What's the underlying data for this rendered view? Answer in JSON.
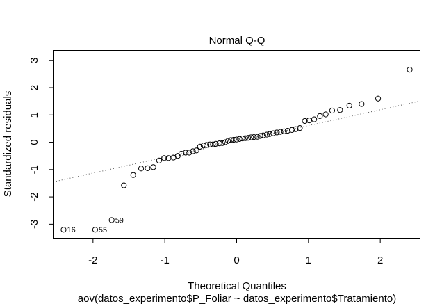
{
  "chart_data": {
    "type": "scatter",
    "title": "Normal Q-Q",
    "xlabel": "Theoretical Quantiles",
    "subtitle": "aov(datos_experimento$P_Foliar ~ datos_experimento$Tratamiento)",
    "ylabel": "Standardized residuals",
    "xlim": [
      -2.55,
      2.55
    ],
    "ylim": [
      -3.5,
      3.35
    ],
    "x_ticks": [
      -2,
      -1,
      0,
      1,
      2
    ],
    "x_tick_labels": [
      "-2",
      "-1",
      "0",
      "1",
      "2"
    ],
    "y_ticks": [
      -3,
      -2,
      -1,
      0,
      1,
      2,
      3
    ],
    "y_tick_labels": [
      "-3",
      "-2",
      "-1",
      "0",
      "1",
      "2",
      "3"
    ],
    "grid": false,
    "reference_line": {
      "style": "dotted",
      "intercept": 0.03,
      "slope": 0.58
    },
    "series": [
      {
        "points": [
          [
            -2.41,
            -3.2
          ],
          [
            -1.97,
            -3.2
          ],
          [
            -1.74,
            -2.85
          ],
          [
            -1.57,
            -1.58
          ],
          [
            -1.44,
            -1.2
          ],
          [
            -1.33,
            -0.96
          ],
          [
            -1.24,
            -0.95
          ],
          [
            -1.16,
            -0.91
          ],
          [
            -1.08,
            -0.67
          ],
          [
            -1.01,
            -0.58
          ],
          [
            -0.95,
            -0.58
          ],
          [
            -0.88,
            -0.56
          ],
          [
            -0.82,
            -0.5
          ],
          [
            -0.77,
            -0.42
          ],
          [
            -0.71,
            -0.38
          ],
          [
            -0.66,
            -0.38
          ],
          [
            -0.61,
            -0.33
          ],
          [
            -0.56,
            -0.3
          ],
          [
            -0.51,
            -0.16
          ],
          [
            -0.46,
            -0.12
          ],
          [
            -0.42,
            -0.1
          ],
          [
            -0.37,
            -0.08
          ],
          [
            -0.33,
            -0.08
          ],
          [
            -0.29,
            -0.06
          ],
          [
            -0.24,
            -0.04
          ],
          [
            -0.2,
            -0.03
          ],
          [
            -0.16,
            0.0
          ],
          [
            -0.12,
            0.05
          ],
          [
            -0.08,
            0.08
          ],
          [
            -0.04,
            0.09
          ],
          [
            0.0,
            0.1
          ],
          [
            0.04,
            0.12
          ],
          [
            0.08,
            0.14
          ],
          [
            0.12,
            0.15
          ],
          [
            0.16,
            0.16
          ],
          [
            0.2,
            0.18
          ],
          [
            0.24,
            0.19
          ],
          [
            0.29,
            0.2
          ],
          [
            0.33,
            0.23
          ],
          [
            0.37,
            0.25
          ],
          [
            0.42,
            0.28
          ],
          [
            0.46,
            0.3
          ],
          [
            0.51,
            0.33
          ],
          [
            0.56,
            0.36
          ],
          [
            0.61,
            0.38
          ],
          [
            0.66,
            0.4
          ],
          [
            0.71,
            0.42
          ],
          [
            0.77,
            0.45
          ],
          [
            0.82,
            0.48
          ],
          [
            0.88,
            0.52
          ],
          [
            0.95,
            0.78
          ],
          [
            1.01,
            0.8
          ],
          [
            1.08,
            0.84
          ],
          [
            1.16,
            0.96
          ],
          [
            1.24,
            1.02
          ],
          [
            1.33,
            1.16
          ],
          [
            1.44,
            1.18
          ],
          [
            1.57,
            1.34
          ],
          [
            1.74,
            1.4
          ],
          [
            1.97,
            1.6
          ],
          [
            2.41,
            2.66
          ]
        ]
      }
    ],
    "point_labels": [
      {
        "text": "16",
        "x": -2.41,
        "y": -3.2
      },
      {
        "text": "55",
        "x": -1.97,
        "y": -3.2
      },
      {
        "text": "59",
        "x": -1.74,
        "y": -2.85
      }
    ]
  }
}
